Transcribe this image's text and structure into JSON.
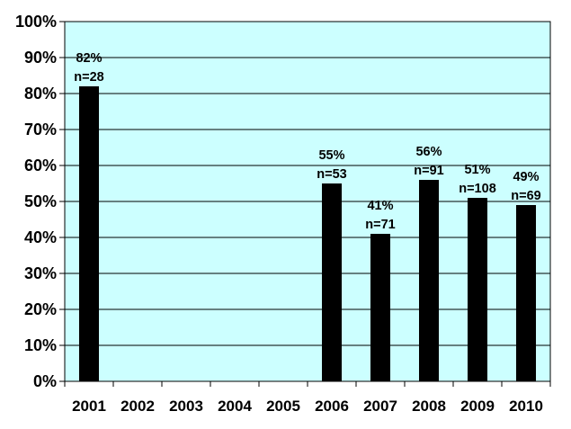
{
  "chart_data": {
    "type": "bar",
    "categories": [
      "2001",
      "2002",
      "2003",
      "2004",
      "2005",
      "2006",
      "2007",
      "2008",
      "2009",
      "2010"
    ],
    "values": [
      82,
      null,
      null,
      null,
      null,
      55,
      41,
      56,
      51,
      49
    ],
    "data_labels": [
      {
        "pct": "82%",
        "n": "n=28"
      },
      null,
      null,
      null,
      null,
      {
        "pct": "55%",
        "n": "n=53"
      },
      {
        "pct": "41%",
        "n": "n=71"
      },
      {
        "pct": "56%",
        "n": "n=91"
      },
      {
        "pct": "51%",
        "n": "n=108"
      },
      {
        "pct": "49%",
        "n": "n=69"
      }
    ],
    "y_ticks": [
      "0%",
      "10%",
      "20%",
      "30%",
      "40%",
      "50%",
      "60%",
      "70%",
      "80%",
      "90%",
      "100%"
    ],
    "ylim": [
      0,
      100
    ],
    "grid": true,
    "legend": false,
    "plot_background": "#ccffff",
    "bar_color": "#000000"
  }
}
